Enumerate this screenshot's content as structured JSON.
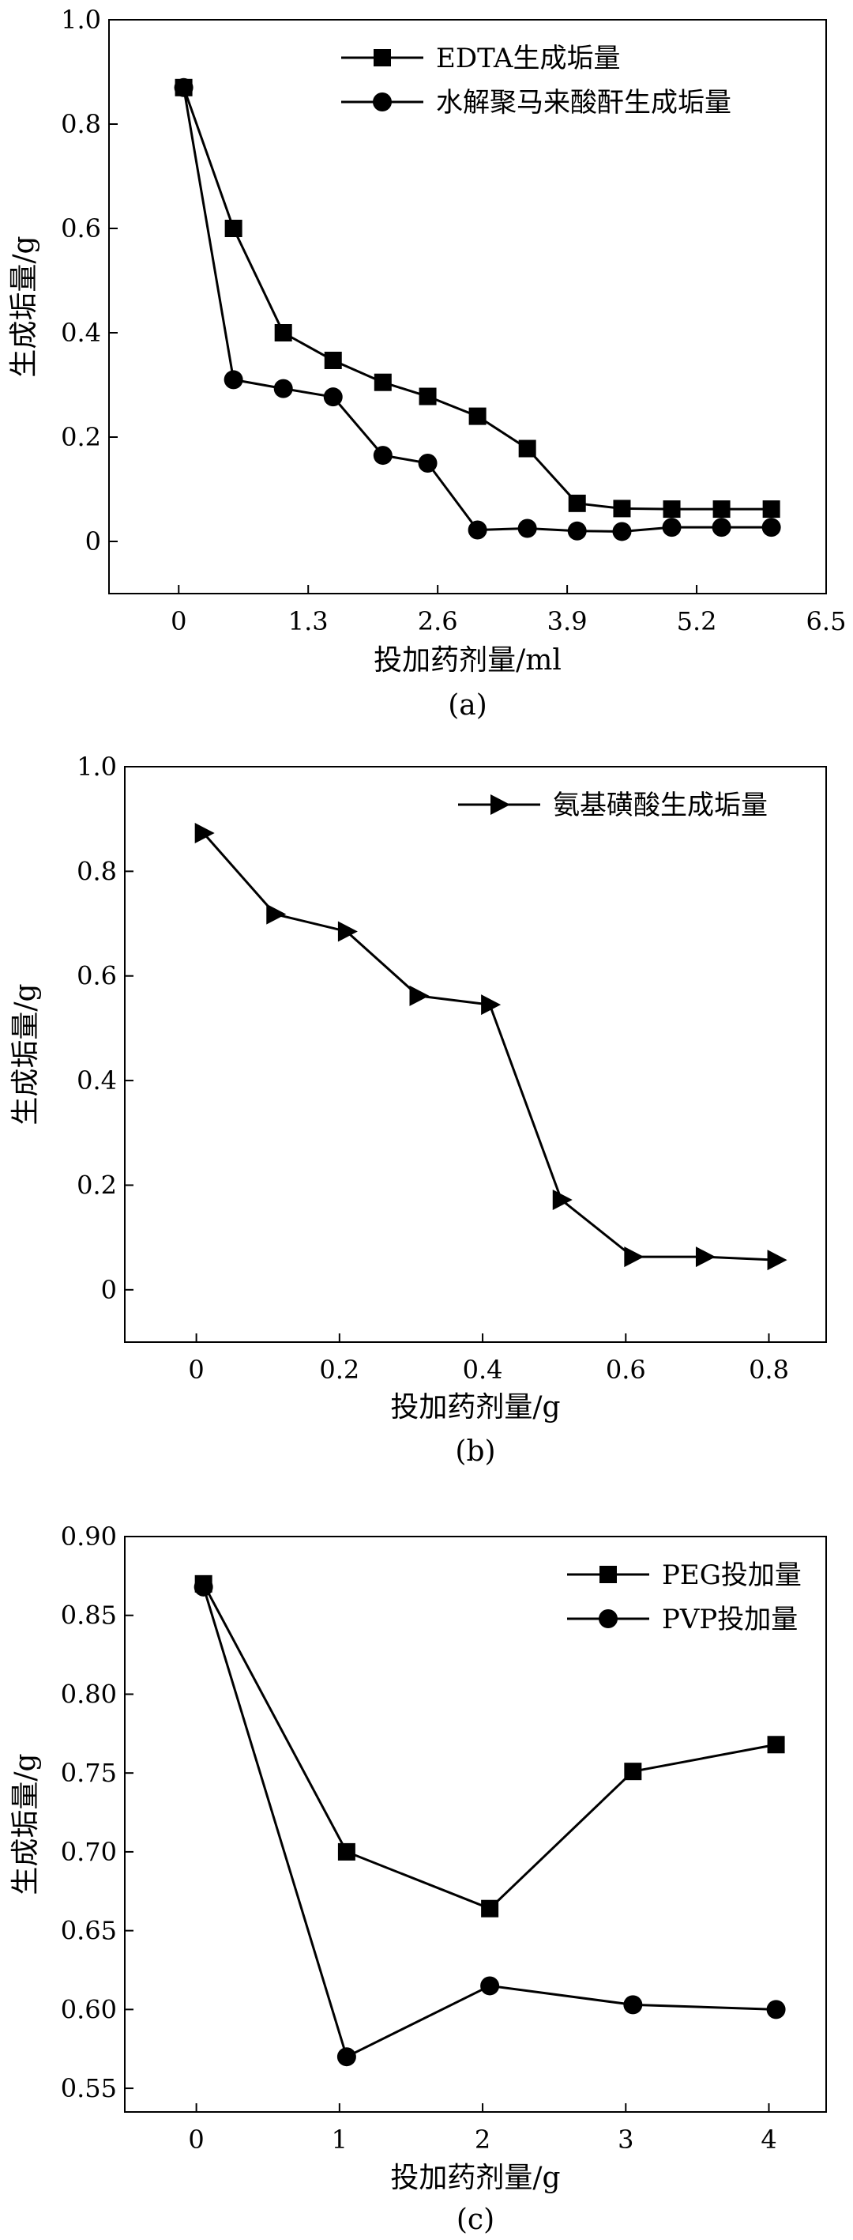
{
  "chart_data": [
    {
      "type": "line",
      "panel_label": "(a)",
      "xlabel": "投加药剂量/ml",
      "ylabel": "生成垢量/g",
      "xlim": [
        -0.7,
        6.5
      ],
      "ylim": [
        -0.1,
        1.0
      ],
      "xticks": [
        0,
        1.3,
        2.6,
        3.9,
        5.2,
        6.5
      ],
      "xtick_labels": [
        "0",
        "1.3",
        "2.6",
        "3.9",
        "5.2",
        "6.5"
      ],
      "yticks": [
        0,
        0.2,
        0.4,
        0.6,
        0.8,
        1.0
      ],
      "ytick_labels": [
        "0",
        "0.2",
        "0.4",
        "0.6",
        "0.8",
        "1.0"
      ],
      "grid": false,
      "legend_position": "top-right",
      "series": [
        {
          "name": "EDTA生成垢量",
          "marker": "square",
          "x": [
            0.05,
            0.55,
            1.05,
            1.55,
            2.05,
            2.5,
            3.0,
            3.5,
            4.0,
            4.45,
            4.95,
            5.45,
            5.95
          ],
          "y": [
            0.87,
            0.6,
            0.4,
            0.347,
            0.305,
            0.278,
            0.24,
            0.178,
            0.073,
            0.063,
            0.062,
            0.062,
            0.062
          ]
        },
        {
          "name": "水解聚马来酸酐生成垢量",
          "marker": "circle",
          "x": [
            0.05,
            0.55,
            1.05,
            1.55,
            2.05,
            2.5,
            3.0,
            3.5,
            4.0,
            4.45,
            4.95,
            5.45,
            5.95
          ],
          "y": [
            0.87,
            0.31,
            0.293,
            0.277,
            0.165,
            0.15,
            0.022,
            0.025,
            0.02,
            0.019,
            0.027,
            0.027,
            0.027
          ]
        }
      ]
    },
    {
      "type": "line",
      "panel_label": "(b)",
      "xlabel": "投加药剂量/g",
      "ylabel": "生成垢量/g",
      "xlim": [
        -0.1,
        0.88
      ],
      "ylim": [
        -0.1,
        1.0
      ],
      "xticks": [
        0,
        0.2,
        0.4,
        0.6,
        0.8
      ],
      "xtick_labels": [
        "0",
        "0.2",
        "0.4",
        "0.6",
        "0.8"
      ],
      "yticks": [
        0,
        0.2,
        0.4,
        0.6,
        0.8,
        1.0
      ],
      "ytick_labels": [
        "0",
        "0.2",
        "0.4",
        "0.6",
        "0.8",
        "1.0"
      ],
      "grid": false,
      "legend_position": "top-right",
      "series": [
        {
          "name": "氨基磺酸生成垢量",
          "marker": "triangle-right",
          "x": [
            0.01,
            0.11,
            0.21,
            0.31,
            0.41,
            0.51,
            0.61,
            0.71,
            0.81
          ],
          "y": [
            0.873,
            0.718,
            0.685,
            0.562,
            0.545,
            0.172,
            0.063,
            0.063,
            0.057
          ]
        }
      ]
    },
    {
      "type": "line",
      "panel_label": "(c)",
      "xlabel": "投加药剂量/g",
      "ylabel": "生成垢量/g",
      "xlim": [
        -0.5,
        4.4
      ],
      "ylim": [
        0.535,
        0.9
      ],
      "xticks": [
        0,
        1,
        2,
        3,
        4
      ],
      "xtick_labels": [
        "0",
        "1",
        "2",
        "3",
        "4"
      ],
      "yticks": [
        0.55,
        0.6,
        0.65,
        0.7,
        0.75,
        0.8,
        0.85,
        0.9
      ],
      "ytick_labels": [
        "0.55",
        "0.60",
        "0.65",
        "0.70",
        "0.75",
        "0.80",
        "0.85",
        "0.90"
      ],
      "grid": false,
      "legend_position": "top-right",
      "series": [
        {
          "name": "PEG投加量",
          "marker": "square",
          "x": [
            0.05,
            1.05,
            2.05,
            3.05,
            4.05
          ],
          "y": [
            0.87,
            0.7,
            0.664,
            0.751,
            0.768
          ]
        },
        {
          "name": "PVP投加量",
          "marker": "circle",
          "x": [
            0.05,
            1.05,
            2.05,
            3.05,
            4.05
          ],
          "y": [
            0.868,
            0.57,
            0.615,
            0.603,
            0.6
          ]
        }
      ]
    }
  ]
}
